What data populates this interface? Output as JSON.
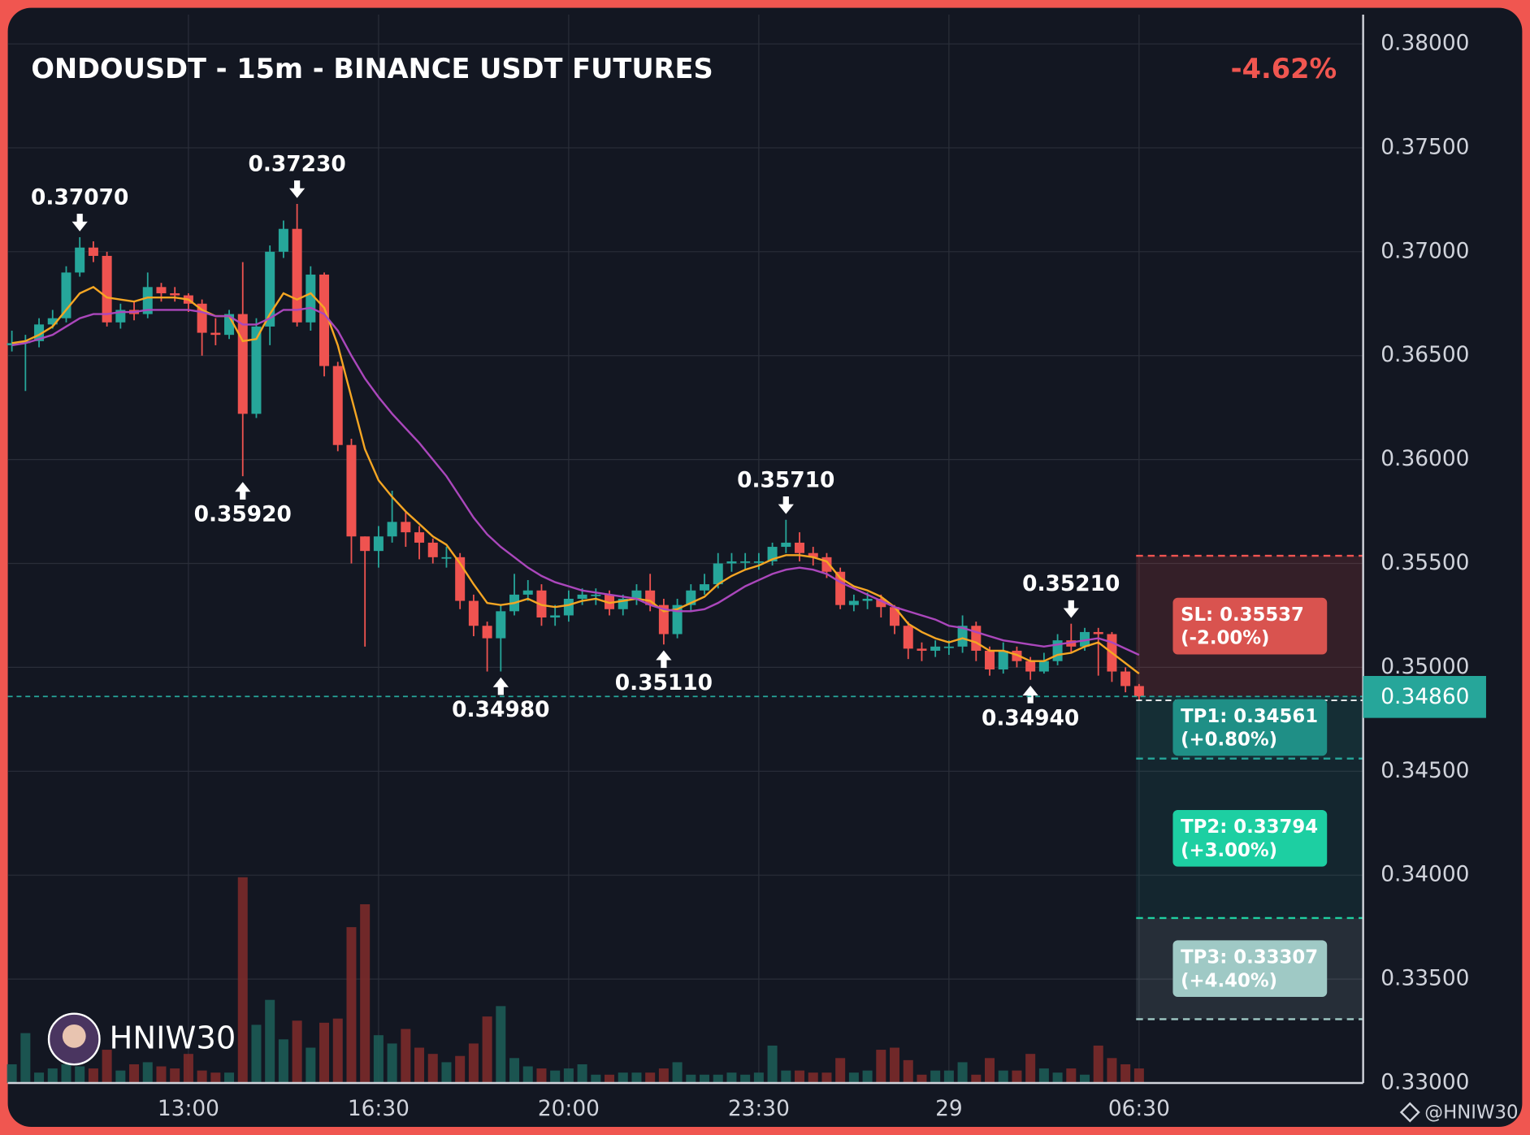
{
  "chart_data": {
    "type": "candlestick",
    "title": "ONDOUSDT - 15m - BINANCE USDT FUTURES",
    "change": "-4.62%",
    "watermark": "HNIW30",
    "credit": "@HNIW30",
    "grid": true,
    "up_color": "#26a69a",
    "down_color": "#ef5350",
    "volume_up_color": "#1d5b55",
    "volume_down_color": "#7b2a2a",
    "xlim": [
      -0.3,
      99.5
    ],
    "xticks": [
      {
        "value": 13,
        "label": "13:00"
      },
      {
        "value": 27,
        "label": "16:30"
      },
      {
        "value": 41,
        "label": "20:00"
      },
      {
        "value": 55,
        "label": "23:30"
      },
      {
        "value": 69,
        "label": "29"
      },
      {
        "value": 83,
        "label": "06:30"
      }
    ],
    "ylim": [
      0.33,
      0.38
    ],
    "yticks": [
      {
        "value": 0.33,
        "label": "0.33000"
      },
      {
        "value": 0.335,
        "label": "0.33500"
      },
      {
        "value": 0.34,
        "label": "0.34000"
      },
      {
        "value": 0.345,
        "label": "0.34500"
      },
      {
        "value": 0.35,
        "label": "0.35000"
      },
      {
        "value": 0.355,
        "label": "0.35500"
      },
      {
        "value": 0.36,
        "label": "0.36000"
      },
      {
        "value": 0.365,
        "label": "0.36500"
      },
      {
        "value": 0.37,
        "label": "0.37000"
      },
      {
        "value": 0.375,
        "label": "0.37500"
      },
      {
        "value": 0.38,
        "label": "0.38000"
      }
    ],
    "open": [
      0.3655,
      0.3656,
      0.3657,
      0.3665,
      0.3668,
      0.369,
      0.3702,
      0.3698,
      0.3666,
      0.3672,
      0.367,
      0.3683,
      0.368,
      0.3679,
      0.3675,
      0.3661,
      0.366,
      0.367,
      0.3622,
      0.3664,
      0.37,
      0.3711,
      0.3666,
      0.3689,
      0.3645,
      0.3607,
      0.3563,
      0.3556,
      0.3563,
      0.357,
      0.3565,
      0.356,
      0.3553,
      0.3553,
      0.3532,
      0.352,
      0.3514,
      0.3527,
      0.3535,
      0.3537,
      0.3524,
      0.3525,
      0.3533,
      0.3535,
      0.3535,
      0.3528,
      0.3533,
      0.3537,
      0.353,
      0.3516,
      0.353,
      0.3537,
      0.354,
      0.355,
      0.3551,
      0.3551,
      0.3551,
      0.3558,
      0.356,
      0.3555,
      0.3553,
      0.3546,
      0.353,
      0.3532,
      0.3533,
      0.3529,
      0.352,
      0.3509,
      0.3508,
      0.351,
      0.351,
      0.352,
      0.3508,
      0.3499,
      0.3508,
      0.3503,
      0.3498,
      0.3503,
      0.3513,
      0.351,
      0.3517,
      0.3516,
      0.3498,
      0.3491
    ],
    "high": [
      0.3662,
      0.366,
      0.3668,
      0.3672,
      0.3693,
      0.3707,
      0.3705,
      0.37,
      0.3675,
      0.3676,
      0.369,
      0.3685,
      0.3683,
      0.368,
      0.3677,
      0.3668,
      0.3672,
      0.3695,
      0.3668,
      0.3703,
      0.3715,
      0.3723,
      0.3693,
      0.369,
      0.3647,
      0.361,
      0.3563,
      0.3568,
      0.3585,
      0.3575,
      0.3568,
      0.3562,
      0.3558,
      0.3555,
      0.3535,
      0.3522,
      0.353,
      0.3545,
      0.3542,
      0.354,
      0.353,
      0.3537,
      0.3538,
      0.3538,
      0.3537,
      0.3535,
      0.354,
      0.3545,
      0.3533,
      0.3533,
      0.354,
      0.3545,
      0.3555,
      0.3555,
      0.3555,
      0.3555,
      0.356,
      0.3571,
      0.3565,
      0.3558,
      0.3555,
      0.3548,
      0.3535,
      0.3536,
      0.3535,
      0.353,
      0.3522,
      0.3512,
      0.3513,
      0.3513,
      0.3525,
      0.3522,
      0.351,
      0.3512,
      0.351,
      0.3505,
      0.3507,
      0.3516,
      0.3521,
      0.3519,
      0.3519,
      0.3517,
      0.35,
      0.3492
    ],
    "low": [
      0.3652,
      0.3633,
      0.3654,
      0.3663,
      0.3666,
      0.3688,
      0.3695,
      0.3664,
      0.3663,
      0.3667,
      0.3668,
      0.3676,
      0.3676,
      0.3671,
      0.365,
      0.3655,
      0.3658,
      0.3592,
      0.362,
      0.3655,
      0.3697,
      0.3664,
      0.3662,
      0.364,
      0.3604,
      0.355,
      0.351,
      0.3548,
      0.356,
      0.3558,
      0.3552,
      0.355,
      0.3548,
      0.3528,
      0.3515,
      0.3498,
      0.3498,
      0.3525,
      0.3532,
      0.352,
      0.352,
      0.3522,
      0.353,
      0.353,
      0.3525,
      0.3525,
      0.353,
      0.3527,
      0.3511,
      0.3514,
      0.3527,
      0.3535,
      0.3538,
      0.3546,
      0.3547,
      0.3547,
      0.3549,
      0.3555,
      0.3551,
      0.3549,
      0.3543,
      0.3528,
      0.3527,
      0.3528,
      0.3524,
      0.3516,
      0.3504,
      0.3503,
      0.3505,
      0.3506,
      0.3507,
      0.3503,
      0.3496,
      0.3497,
      0.35,
      0.3494,
      0.3497,
      0.3501,
      0.3507,
      0.3508,
      0.3496,
      0.3493,
      0.3488,
      0.3484
    ],
    "close": [
      0.3656,
      0.3657,
      0.3665,
      0.3668,
      0.369,
      0.3702,
      0.3698,
      0.3666,
      0.3672,
      0.367,
      0.3683,
      0.368,
      0.3679,
      0.3675,
      0.3661,
      0.366,
      0.367,
      0.3622,
      0.3664,
      0.37,
      0.3711,
      0.3666,
      0.3689,
      0.3645,
      0.3607,
      0.3563,
      0.3556,
      0.3563,
      0.357,
      0.3565,
      0.356,
      0.3553,
      0.3553,
      0.3532,
      0.352,
      0.3514,
      0.3527,
      0.3535,
      0.3537,
      0.3524,
      0.3525,
      0.3533,
      0.3535,
      0.3535,
      0.3528,
      0.3533,
      0.3537,
      0.353,
      0.3516,
      0.353,
      0.3537,
      0.354,
      0.355,
      0.3551,
      0.3551,
      0.3551,
      0.3558,
      0.356,
      0.3555,
      0.3553,
      0.3546,
      0.353,
      0.3532,
      0.3533,
      0.3529,
      0.352,
      0.3509,
      0.3508,
      0.351,
      0.351,
      0.352,
      0.3508,
      0.3499,
      0.3508,
      0.3503,
      0.3498,
      0.3503,
      0.3513,
      0.351,
      0.3517,
      0.3516,
      0.3498,
      0.3491,
      0.3486
    ],
    "volume_ylim": [
      0,
      1000
    ],
    "volume": [
      18,
      48,
      10,
      14,
      18,
      16,
      14,
      32,
      12,
      18,
      20,
      16,
      14,
      28,
      12,
      10,
      10,
      198,
      56,
      80,
      42,
      60,
      34,
      58,
      62,
      150,
      172,
      46,
      38,
      52,
      34,
      28,
      20,
      26,
      38,
      64,
      74,
      24,
      16,
      14,
      12,
      14,
      18,
      8,
      8,
      10,
      10,
      10,
      14,
      20,
      8,
      8,
      8,
      10,
      8,
      10,
      36,
      12,
      12,
      10,
      10,
      24,
      10,
      12,
      32,
      34,
      22,
      8,
      12,
      12,
      20,
      8,
      24,
      12,
      12,
      28,
      14,
      10,
      14,
      8,
      36,
      24,
      18,
      14
    ],
    "lines": [
      {
        "color": "#f5a623",
        "values": [
          0.3656,
          0.3657,
          0.366,
          0.3664,
          0.3672,
          0.368,
          0.3683,
          0.3678,
          0.3677,
          0.3676,
          0.3678,
          0.3678,
          0.3678,
          0.3677,
          0.3672,
          0.3669,
          0.3669,
          0.3657,
          0.3658,
          0.367,
          0.368,
          0.3677,
          0.368,
          0.3673,
          0.3655,
          0.363,
          0.3605,
          0.359,
          0.3582,
          0.3575,
          0.3569,
          0.3563,
          0.3559,
          0.355,
          0.354,
          0.3531,
          0.353,
          0.3531,
          0.3533,
          0.353,
          0.3529,
          0.353,
          0.3532,
          0.3533,
          0.3531,
          0.3532,
          0.3533,
          0.3532,
          0.3527,
          0.3528,
          0.3531,
          0.3534,
          0.354,
          0.3544,
          0.3547,
          0.3549,
          0.3552,
          0.3554,
          0.3554,
          0.3553,
          0.3551,
          0.3543,
          0.3539,
          0.3537,
          0.3534,
          0.3529,
          0.3521,
          0.3517,
          0.3514,
          0.3512,
          0.3514,
          0.3512,
          0.3508,
          0.3508,
          0.3506,
          0.3503,
          0.3503,
          0.3506,
          0.3507,
          0.351,
          0.3512,
          0.3507,
          0.3502,
          0.3497
        ]
      },
      {
        "color": "#ab47bc",
        "values": [
          0.3655,
          0.3656,
          0.3658,
          0.366,
          0.3664,
          0.3668,
          0.367,
          0.367,
          0.3671,
          0.3671,
          0.3672,
          0.3672,
          0.3672,
          0.3672,
          0.3671,
          0.3669,
          0.3669,
          0.3665,
          0.3665,
          0.3668,
          0.3672,
          0.3672,
          0.3673,
          0.367,
          0.3662,
          0.365,
          0.3639,
          0.363,
          0.3622,
          0.3615,
          0.3608,
          0.36,
          0.3592,
          0.3582,
          0.3572,
          0.3564,
          0.3558,
          0.3553,
          0.3548,
          0.3544,
          0.3541,
          0.3539,
          0.3537,
          0.3536,
          0.3535,
          0.3534,
          0.3533,
          0.353,
          0.3528,
          0.3527,
          0.3527,
          0.3528,
          0.3531,
          0.3535,
          0.3539,
          0.3542,
          0.3545,
          0.3547,
          0.3548,
          0.3547,
          0.3545,
          0.3541,
          0.3538,
          0.3535,
          0.3532,
          0.3529,
          0.3527,
          0.3525,
          0.3523,
          0.352,
          0.3519,
          0.3517,
          0.3515,
          0.3513,
          0.3512,
          0.3511,
          0.351,
          0.3511,
          0.3512,
          0.3513,
          0.3514,
          0.3512,
          0.3509,
          0.3506
        ]
      }
    ],
    "annotations": [
      {
        "index": 5,
        "kind": "high",
        "value": 0.3707,
        "label": "0.37070"
      },
      {
        "index": 21,
        "kind": "high",
        "value": 0.3723,
        "label": "0.37230"
      },
      {
        "index": 17,
        "kind": "low",
        "value": 0.3592,
        "label": "0.35920"
      },
      {
        "index": 36,
        "kind": "low",
        "value": 0.3498,
        "label": "0.34980"
      },
      {
        "index": 48,
        "kind": "low",
        "value": 0.3511,
        "label": "0.35110"
      },
      {
        "index": 57,
        "kind": "high",
        "value": 0.3571,
        "label": "0.35710"
      },
      {
        "index": 75,
        "kind": "low",
        "value": 0.3494,
        "label": "0.34940"
      },
      {
        "index": 78,
        "kind": "high",
        "value": 0.3521,
        "label": "0.35210"
      }
    ],
    "last_price": {
      "value": 0.3486,
      "label": "0.34860",
      "color": "#26a69a"
    },
    "levels": [
      {
        "price": 0.35537,
        "label": "SL: 0.35537",
        "change_label": "(-2.00%)",
        "line_color": "#ef5350",
        "box_color": "#d9534f",
        "zone_color": "rgba(239,83,80,0.15)"
      },
      {
        "price": 0.34561,
        "label": "TP1: 0.34561",
        "change_label": "(+0.80%)",
        "line_color": "#26a69a",
        "box_color": "#1f8f86",
        "zone_color": "rgba(38,166,154,0.16)"
      },
      {
        "price": 0.33794,
        "label": "TP2: 0.33794",
        "change_label": "(+3.00%)",
        "line_color": "#1fcfa0",
        "box_color": "#1dcfa2",
        "zone_color": "rgba(38,166,154,0.11)"
      },
      {
        "price": 0.33307,
        "label": "TP3: 0.33307",
        "change_label": "(+4.40%)",
        "line_color": "#a0cac6",
        "box_color": "#9fc9c5",
        "zone_color": "rgba(170,200,210,0.13)"
      }
    ]
  }
}
